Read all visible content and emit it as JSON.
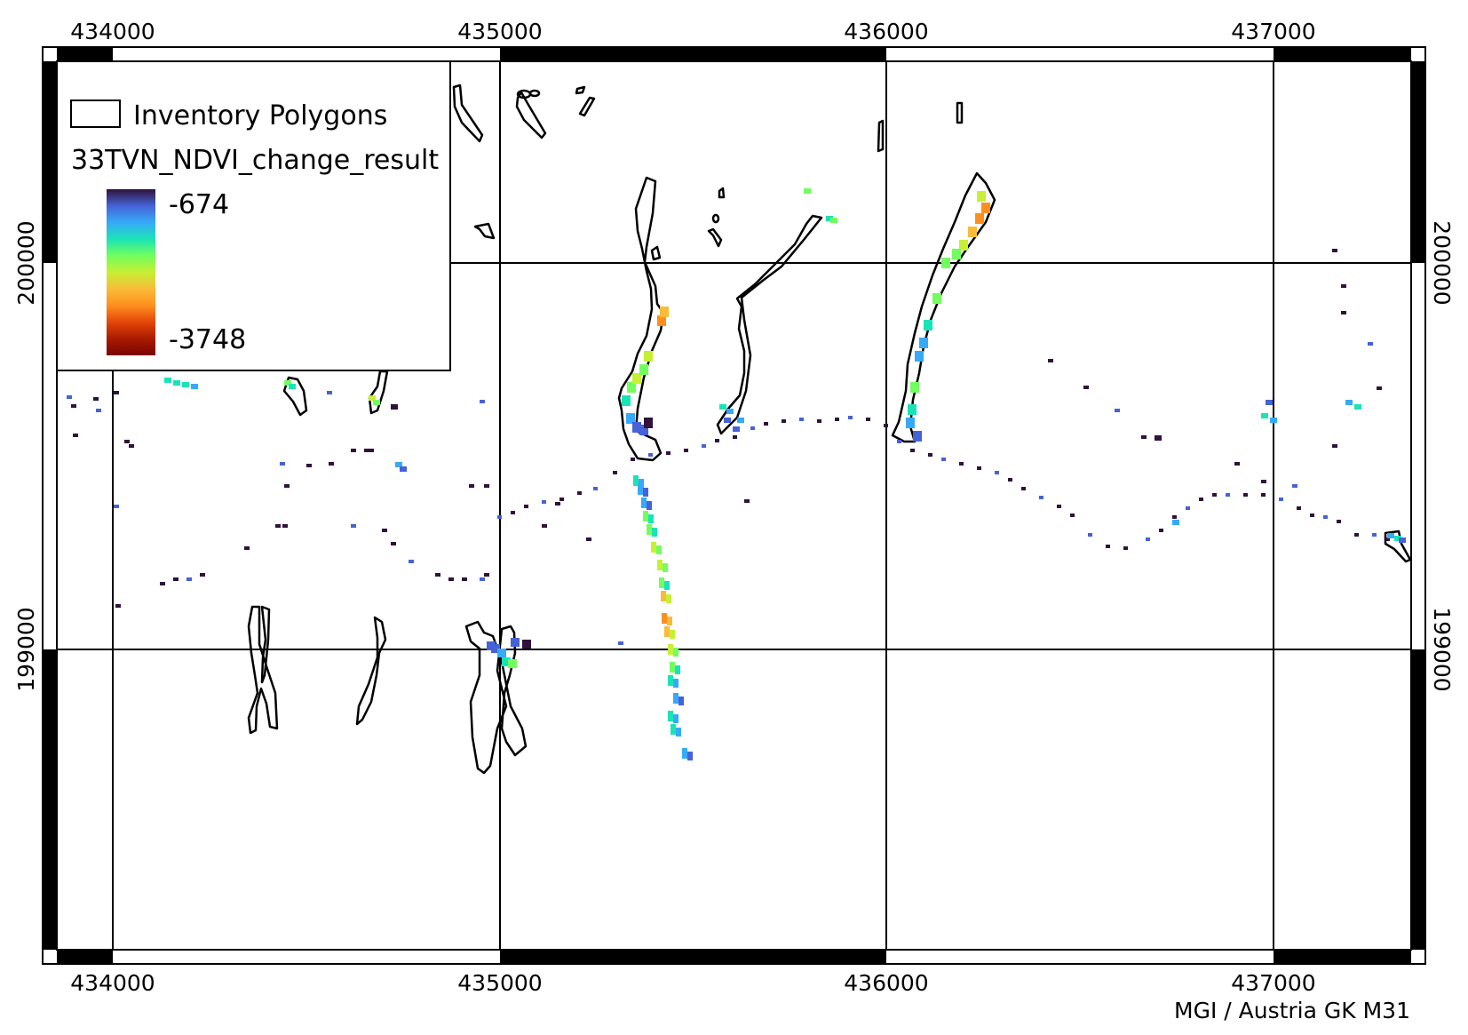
{
  "map": {
    "crs_label": "MGI / Austria GK M31",
    "x_ticks": [
      "434000",
      "435000",
      "436000",
      "437000"
    ],
    "y_ticks": [
      "200000",
      "199000"
    ],
    "legend": {
      "polygon_label": "Inventory Polygons",
      "raster_title": "33TVN_NDVI_change_result",
      "ramp_max_label": "-674",
      "ramp_min_label": "-3748",
      "ramp_colors": [
        "#30123b",
        "#4662d7",
        "#36aaf9",
        "#1ae4b6",
        "#72fe5e",
        "#c7ef34",
        "#fabb39",
        "#fe8f1f",
        "#e4460a",
        "#a81b01",
        "#7a0403"
      ]
    },
    "colors": {
      "grid": "#000000",
      "frame": "#000000",
      "polygon_stroke": "#000000",
      "background": "#ffffff"
    }
  }
}
